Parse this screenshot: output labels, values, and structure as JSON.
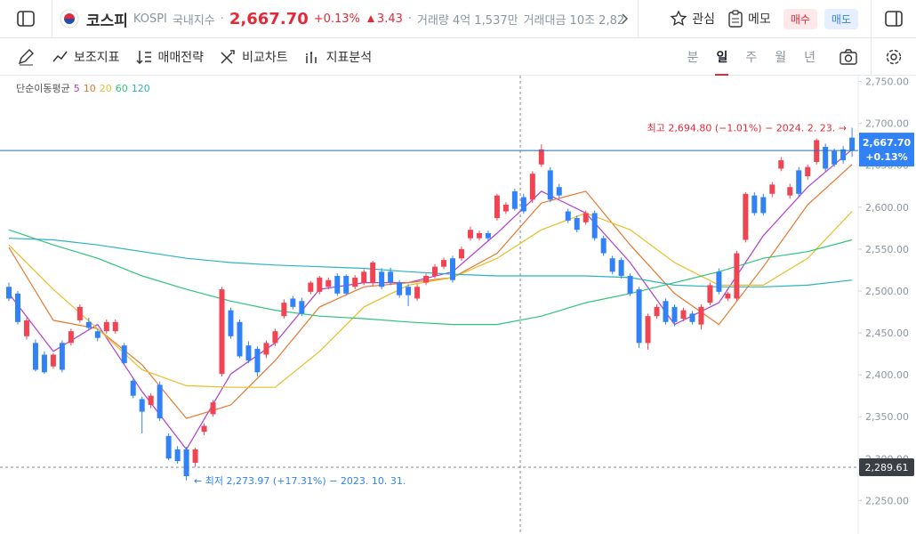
{
  "header": {
    "name": "코스피",
    "code": "KOSPI",
    "market": "국내지수",
    "separator": "·",
    "change_amount": "3.43",
    "volume": "거래량 4억 1,537만",
    "turnover": "거래대금 10조 2,82",
    "watch": "관심",
    "memo": "메모",
    "buy": "매수",
    "sell": "매도"
  },
  "toolbar": {
    "items": [
      "보조지표",
      "매매전략",
      "비교차트",
      "지표분석"
    ],
    "periods": [
      "분",
      "일",
      "주",
      "월",
      "년"
    ],
    "active_period": "일"
  },
  "chart_data": {
    "type": "candlestick",
    "indicator_label": "단순이동평균",
    "up_color": "#f04452",
    "down_color": "#3182f6",
    "candles": {
      "open": [
        2505,
        2497,
        2446,
        2438,
        2424,
        2410,
        2438,
        2438,
        2465,
        2463,
        2452,
        2452,
        2452,
        2435,
        2393,
        2371,
        2364,
        2388,
        2327,
        2311,
        2311,
        2295,
        2332,
        2353,
        2401,
        2477,
        2463,
        2435,
        2431,
        2424,
        2438,
        2470,
        2491,
        2488,
        2499,
        2499,
        2505,
        2518,
        2518,
        2505,
        2510,
        2510,
        2523,
        2523,
        2510,
        2505,
        2491,
        2510,
        2518,
        2529,
        2539,
        2539,
        2563,
        2563,
        2569,
        2587,
        2595,
        2619,
        2612,
        2609,
        2651,
        2644,
        2624,
        2595,
        2587,
        2582,
        2593,
        2563,
        2539,
        2537,
        2518,
        2502,
        2438,
        2470,
        2488,
        2481,
        2467,
        2473,
        2460,
        2486,
        2523,
        2491,
        2491,
        2561,
        2614,
        2612,
        2616,
        2646,
        2614,
        2644,
        2637,
        2654,
        2672,
        2667,
        2669,
        2683
      ],
      "high": [
        2510,
        2500,
        2468,
        2442,
        2428,
        2426,
        2441,
        2455,
        2484,
        2468,
        2455,
        2466,
        2466,
        2438,
        2397,
        2374,
        2378,
        2392,
        2330,
        2315,
        2314,
        2313,
        2342,
        2370,
        2505,
        2480,
        2466,
        2440,
        2434,
        2441,
        2455,
        2490,
        2494,
        2492,
        2512,
        2518,
        2516,
        2521,
        2520,
        2519,
        2526,
        2536,
        2527,
        2528,
        2513,
        2508,
        2508,
        2521,
        2532,
        2540,
        2542,
        2553,
        2577,
        2572,
        2572,
        2616,
        2606,
        2622,
        2616,
        2643,
        2675,
        2648,
        2628,
        2598,
        2590,
        2596,
        2596,
        2566,
        2542,
        2540,
        2521,
        2505,
        2473,
        2484,
        2491,
        2484,
        2480,
        2476,
        2484,
        2510,
        2527,
        2499,
        2548,
        2618,
        2618,
        2616,
        2630,
        2660,
        2628,
        2648,
        2651,
        2682,
        2676,
        2670,
        2673,
        2694.8
      ],
      "low": [
        2488,
        2460,
        2442,
        2404,
        2401,
        2407,
        2403,
        2435,
        2462,
        2453,
        2440,
        2449,
        2449,
        2412,
        2372,
        2330,
        2360,
        2345,
        2298,
        2294,
        2273.97,
        2290,
        2328,
        2350,
        2398,
        2443,
        2420,
        2414,
        2398,
        2420,
        2434,
        2467,
        2478,
        2470,
        2496,
        2496,
        2502,
        2494,
        2495,
        2502,
        2507,
        2506,
        2502,
        2507,
        2492,
        2482,
        2488,
        2507,
        2515,
        2526,
        2510,
        2536,
        2560,
        2560,
        2560,
        2584,
        2592,
        2596,
        2592,
        2605,
        2648,
        2606,
        2611,
        2581,
        2570,
        2579,
        2560,
        2542,
        2520,
        2515,
        2494,
        2432,
        2430,
        2467,
        2460,
        2458,
        2464,
        2460,
        2454,
        2483,
        2496,
        2488,
        2488,
        2558,
        2590,
        2590,
        2612,
        2643,
        2610,
        2613,
        2633,
        2651,
        2643,
        2648,
        2652,
        2660
      ],
      "close": [
        2491,
        2463,
        2465,
        2406,
        2403,
        2424,
        2406,
        2452,
        2481,
        2456,
        2444,
        2463,
        2463,
        2414,
        2375,
        2356,
        2375,
        2348,
        2300,
        2297,
        2279,
        2311,
        2339,
        2367,
        2502,
        2446,
        2422,
        2417,
        2403,
        2438,
        2452,
        2486,
        2481,
        2473,
        2510,
        2516,
        2513,
        2497,
        2497,
        2516,
        2523,
        2534,
        2505,
        2510,
        2495,
        2495,
        2505,
        2518,
        2529,
        2537,
        2513,
        2550,
        2573,
        2569,
        2563,
        2614,
        2603,
        2598,
        2595,
        2640,
        2669,
        2609,
        2614,
        2584,
        2573,
        2593,
        2563,
        2545,
        2523,
        2518,
        2497,
        2438,
        2470,
        2481,
        2463,
        2463,
        2477,
        2463,
        2481,
        2507,
        2499,
        2497,
        2545,
        2616,
        2593,
        2593,
        2627,
        2656,
        2624,
        2616,
        2648,
        2680,
        2646,
        2651,
        2656,
        2667.7
      ]
    },
    "moving_averages": [
      {
        "name": "5",
        "color": "#b03fd0",
        "x": [
          0,
          5,
          10,
          15,
          20,
          25,
          30,
          35,
          40,
          45,
          50,
          55,
          60,
          65,
          70,
          75,
          80,
          85,
          90,
          95
        ],
        "values": [
          2497,
          2428,
          2460,
          2380,
          2311,
          2401,
          2438,
          2502,
          2510,
          2510,
          2523,
          2569,
          2619,
          2593,
          2534,
          2460,
          2486,
          2566,
          2624,
          2669
        ]
      },
      {
        "name": "10",
        "color": "#e8772e",
        "x": [
          0,
          5,
          10,
          15,
          20,
          25,
          30,
          35,
          40,
          45,
          50,
          55,
          60,
          65,
          70,
          75,
          80,
          85,
          90,
          95
        ],
        "values": [
          2552,
          2465,
          2455,
          2412,
          2348,
          2364,
          2417,
          2481,
          2505,
          2510,
          2516,
          2545,
          2605,
          2619,
          2555,
          2497,
          2460,
          2529,
          2603,
          2651
        ]
      },
      {
        "name": "20",
        "color": "#e6bf2a",
        "x": [
          0,
          5,
          10,
          15,
          20,
          25,
          30,
          35,
          40,
          45,
          50,
          55,
          60,
          65,
          70,
          75,
          80,
          85,
          90,
          95
        ],
        "values": [
          2555,
          2502,
          2455,
          2406,
          2387,
          2385,
          2385,
          2428,
          2481,
          2507,
          2516,
          2539,
          2573,
          2593,
          2573,
          2534,
          2507,
          2507,
          2539,
          2595
        ]
      },
      {
        "name": "60",
        "color": "#2fc47a",
        "x": [
          0,
          5,
          10,
          15,
          20,
          25,
          30,
          35,
          40,
          45,
          50,
          55,
          60,
          65,
          70,
          75,
          80,
          85,
          90,
          95
        ],
        "values": [
          2573,
          2555,
          2539,
          2518,
          2502,
          2488,
          2477,
          2470,
          2467,
          2463,
          2460,
          2460,
          2470,
          2486,
          2497,
          2510,
          2523,
          2539,
          2547,
          2561
        ]
      },
      {
        "name": "120",
        "color": "#2bb3c0",
        "x": [
          0,
          5,
          10,
          15,
          20,
          25,
          30,
          35,
          40,
          45,
          50,
          55,
          60,
          65,
          70,
          75,
          80,
          85,
          90,
          95
        ],
        "values": [
          2563,
          2561,
          2555,
          2547,
          2539,
          2534,
          2531,
          2529,
          2527,
          2523,
          2520,
          2518,
          2518,
          2518,
          2516,
          2507,
          2505,
          2505,
          2507,
          2513
        ]
      }
    ],
    "ylim": [
      2210,
      2757
    ],
    "yticks": [
      {
        "value": 2250,
        "label": "2,250.00"
      },
      {
        "value": 2300,
        "label": "2,300.00"
      },
      {
        "value": 2350,
        "label": "2,350.00"
      },
      {
        "value": 2400,
        "label": "2,400.00"
      },
      {
        "value": 2450,
        "label": "2,450.00"
      },
      {
        "value": 2500,
        "label": "2,500.00"
      },
      {
        "value": 2550,
        "label": "2,550.00"
      },
      {
        "value": 2600,
        "label": "2,600.00"
      },
      {
        "value": 2650,
        "label": "2,650.00"
      },
      {
        "value": 2700,
        "label": "2,700.00"
      },
      {
        "value": 2750,
        "label": "2,750.00"
      }
    ],
    "last_price": {
      "value": 2667.7,
      "label": "2,667.70",
      "change_label": "+0.13%"
    },
    "crosshair": {
      "value": 2289.61,
      "label": "2,289.61"
    },
    "high_marker": {
      "value": 2694.8,
      "label": "최고 2,694.80 (−1.01%) − 2024. 2. 23. →"
    },
    "low_marker": {
      "value": 2273.97,
      "label": "← 최저 2,273.97 (+17.31%) − 2023. 10. 31."
    }
  }
}
